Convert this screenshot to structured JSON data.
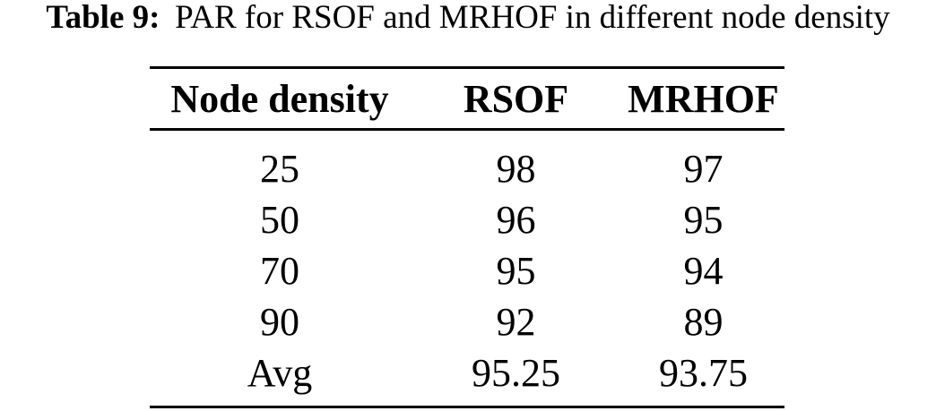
{
  "page": {
    "background": "#ffffff",
    "text_color": "#000000",
    "rule_color": "#000000"
  },
  "caption": {
    "label": "Table 9:",
    "text": "PAR for RSOF and MRHOF in different node density"
  },
  "table": {
    "columns": [
      "Node density",
      "RSOF",
      "MRHOF"
    ],
    "rows": [
      [
        "25",
        "98",
        "97"
      ],
      [
        "50",
        "96",
        "95"
      ],
      [
        "70",
        "95",
        "94"
      ],
      [
        "90",
        "92",
        "89"
      ],
      [
        "Avg",
        "95.25",
        "93.75"
      ]
    ]
  },
  "chart_data": {
    "type": "table",
    "title": "Table 9: PAR for RSOF and MRHOF in different node density",
    "columns": [
      "Node density",
      "RSOF",
      "MRHOF"
    ],
    "categories": [
      "25",
      "50",
      "70",
      "90",
      "Avg"
    ],
    "series": [
      {
        "name": "RSOF",
        "values": [
          98,
          96,
          95,
          92,
          95.25
        ]
      },
      {
        "name": "MRHOF",
        "values": [
          97,
          95,
          94,
          89,
          93.75
        ]
      }
    ]
  }
}
